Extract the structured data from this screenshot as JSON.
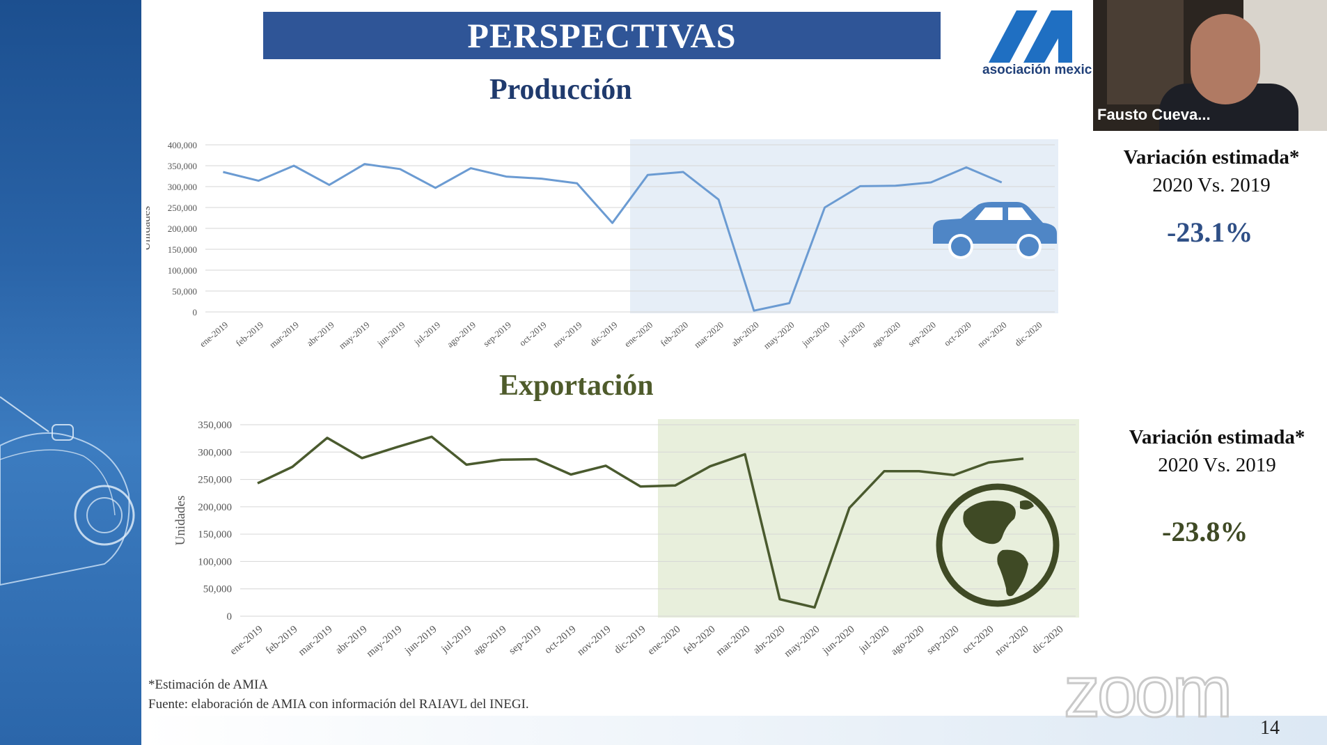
{
  "slide": {
    "title": "PERSPECTIVAS",
    "logo_text": "asociación mexic",
    "page_number": "14",
    "footnote_1": "*Estimación de AMIA",
    "footnote_2": "Fuente: elaboración de AMIA con información del RAIAVL del INEGI.",
    "zoom_watermark": "zoom"
  },
  "video": {
    "participant_name": "Fausto Cueva..."
  },
  "produccion": {
    "section_title": "Producción",
    "variation_label": "Variación estimada*",
    "variation_years": "2020 Vs. 2019",
    "variation_value": "-23.1%",
    "icon": "car-icon"
  },
  "exportacion": {
    "section_title": "Exportación",
    "variation_label": "Variación estimada*",
    "variation_years": "2020 Vs. 2019",
    "variation_value": "-23.8%",
    "icon": "globe-icon"
  },
  "chart_data": [
    {
      "type": "line",
      "title": "Producción",
      "ylabel": "Unidades",
      "ylim": [
        0,
        400000
      ],
      "yticks": [
        "0",
        "50,000",
        "100,000",
        "150,000",
        "200,000",
        "250,000",
        "300,000",
        "350,000",
        "400,000"
      ],
      "categories": [
        "ene-2019",
        "feb-2019",
        "mar-2019",
        "abr-2019",
        "may-2019",
        "jun-2019",
        "jul-2019",
        "ago-2019",
        "sep-2019",
        "oct-2019",
        "nov-2019",
        "dic-2019",
        "ene-2020",
        "feb-2020",
        "mar-2020",
        "abr-2020",
        "may-2020",
        "jun-2020",
        "jul-2020",
        "ago-2020",
        "sep-2020",
        "oct-2020",
        "nov-2020",
        "dic-2020"
      ],
      "values": [
        335000,
        314000,
        350000,
        304000,
        354000,
        342000,
        297000,
        344000,
        324000,
        319000,
        308000,
        213000,
        328000,
        335000,
        269000,
        3000,
        21000,
        250000,
        301000,
        302000,
        310000,
        346000,
        310000,
        null
      ],
      "highlight_from": "ene-2020",
      "color": "#6b9bd2",
      "highlight_color": "#e6eef7",
      "grid": true
    },
    {
      "type": "line",
      "title": "Exportación",
      "ylabel": "Unidades",
      "ylim": [
        0,
        350000
      ],
      "yticks": [
        "0",
        "50,000",
        "100,000",
        "150,000",
        "200,000",
        "250,000",
        "300,000",
        "350,000"
      ],
      "categories": [
        "ene-2019",
        "feb-2019",
        "mar-2019",
        "abr-2019",
        "may-2019",
        "jun-2019",
        "jul-2019",
        "ago-2019",
        "sep-2019",
        "oct-2019",
        "nov-2019",
        "dic-2019",
        "ene-2020",
        "feb-2020",
        "mar-2020",
        "abr-2020",
        "may-2020",
        "jun-2020",
        "jul-2020",
        "ago-2020",
        "sep-2020",
        "oct-2020",
        "nov-2020",
        "dic-2020"
      ],
      "values": [
        243000,
        273000,
        326000,
        289000,
        309000,
        328000,
        277000,
        286000,
        287000,
        259000,
        275000,
        237000,
        239000,
        274000,
        296000,
        31000,
        16000,
        198000,
        265000,
        265000,
        258000,
        281000,
        288000,
        null
      ],
      "highlight_from": "ene-2020",
      "color": "#4a5a2e",
      "highlight_color": "#e8efdc",
      "grid": true
    }
  ]
}
